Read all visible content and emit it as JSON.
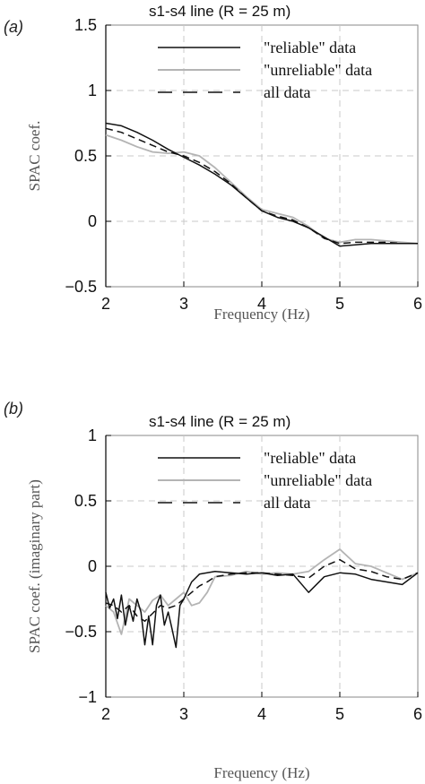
{
  "chart_data": [
    {
      "type": "line",
      "panel_label": "(a)",
      "title": "s1-s4 line (R = 25 m)",
      "xlabel": "Frequency (Hz)",
      "ylabel": "SPAC coef.",
      "xlim": [
        2,
        6
      ],
      "ylim": [
        -0.5,
        1.5
      ],
      "xticks": [
        "2",
        "3",
        "4",
        "5",
        "6"
      ],
      "yticks": [
        "1.5",
        "1",
        "0.5",
        "0",
        "−0.5"
      ],
      "ytick_values": [
        1.5,
        1,
        0.5,
        0,
        -0.5
      ],
      "grid": true,
      "legend_position": "top-right",
      "series": [
        {
          "name": "\"reliable\" data",
          "color": "#111111",
          "dash": "solid",
          "x": [
            2.0,
            2.2,
            2.4,
            2.6,
            2.8,
            3.0,
            3.2,
            3.4,
            3.6,
            3.8,
            4.0,
            4.2,
            4.4,
            4.6,
            4.8,
            5.0,
            5.2,
            5.4,
            5.6,
            5.8,
            6.0
          ],
          "y": [
            0.75,
            0.73,
            0.68,
            0.62,
            0.55,
            0.49,
            0.43,
            0.36,
            0.28,
            0.18,
            0.08,
            0.03,
            0.0,
            -0.05,
            -0.12,
            -0.19,
            -0.18,
            -0.17,
            -0.17,
            -0.17,
            -0.17
          ]
        },
        {
          "name": "\"unreliable\" data",
          "color": "#b4b4b4",
          "dash": "solid",
          "x": [
            2.0,
            2.2,
            2.4,
            2.6,
            2.8,
            3.0,
            3.2,
            3.4,
            3.6,
            3.8,
            4.0,
            4.2,
            4.4,
            4.6,
            4.8,
            5.0,
            5.2,
            5.4,
            5.6,
            5.8,
            6.0
          ],
          "y": [
            0.66,
            0.62,
            0.57,
            0.53,
            0.52,
            0.53,
            0.5,
            0.41,
            0.3,
            0.19,
            0.09,
            0.06,
            0.03,
            -0.04,
            -0.13,
            -0.16,
            -0.14,
            -0.14,
            -0.15,
            -0.16,
            -0.17
          ]
        },
        {
          "name": "all data",
          "color": "#111111",
          "dash": "dashed",
          "x": [
            2.0,
            2.2,
            2.4,
            2.6,
            2.8,
            3.0,
            3.2,
            3.4,
            3.6,
            3.8,
            4.0,
            4.2,
            4.4,
            4.6,
            4.8,
            5.0,
            5.2,
            5.4,
            5.6,
            5.8,
            6.0
          ],
          "y": [
            0.71,
            0.68,
            0.63,
            0.58,
            0.53,
            0.5,
            0.45,
            0.38,
            0.29,
            0.18,
            0.08,
            0.04,
            0.01,
            -0.05,
            -0.13,
            -0.17,
            -0.16,
            -0.16,
            -0.16,
            -0.17,
            -0.17
          ]
        }
      ]
    },
    {
      "type": "line",
      "panel_label": "(b)",
      "title": "s1-s4 line (R = 25 m)",
      "xlabel": "Frequency (Hz)",
      "ylabel": "SPAC coef. (imaginary part)",
      "xlim": [
        2,
        6
      ],
      "ylim": [
        -1,
        1
      ],
      "xticks": [
        "2",
        "3",
        "4",
        "5",
        "6"
      ],
      "yticks": [
        "1",
        "0.5",
        "0",
        "−0.5",
        "−1"
      ],
      "ytick_values": [
        1,
        0.5,
        0,
        -0.5,
        -1
      ],
      "grid": true,
      "legend_position": "top-right",
      "series": [
        {
          "name": "\"reliable\" data",
          "color": "#111111",
          "dash": "solid",
          "x": [
            2.0,
            2.05,
            2.1,
            2.15,
            2.2,
            2.25,
            2.3,
            2.35,
            2.4,
            2.45,
            2.5,
            2.55,
            2.6,
            2.65,
            2.7,
            2.75,
            2.8,
            2.85,
            2.9,
            2.95,
            3.0,
            3.1,
            3.2,
            3.4,
            3.6,
            3.8,
            4.0,
            4.2,
            4.4,
            4.6,
            4.8,
            5.0,
            5.2,
            5.4,
            5.6,
            5.8,
            6.0
          ],
          "y": [
            -0.2,
            -0.32,
            -0.25,
            -0.4,
            -0.22,
            -0.45,
            -0.3,
            -0.42,
            -0.25,
            -0.35,
            -0.6,
            -0.38,
            -0.6,
            -0.3,
            -0.22,
            -0.45,
            -0.35,
            -0.48,
            -0.62,
            -0.3,
            -0.25,
            -0.12,
            -0.06,
            -0.04,
            -0.05,
            -0.06,
            -0.05,
            -0.07,
            -0.06,
            -0.2,
            -0.08,
            -0.05,
            -0.06,
            -0.1,
            -0.12,
            -0.14,
            -0.05
          ]
        },
        {
          "name": "\"unreliable\" data",
          "color": "#b4b4b4",
          "dash": "solid",
          "x": [
            2.0,
            2.1,
            2.2,
            2.3,
            2.4,
            2.5,
            2.6,
            2.7,
            2.8,
            2.9,
            3.0,
            3.1,
            3.2,
            3.3,
            3.4,
            3.6,
            3.8,
            4.0,
            4.2,
            4.4,
            4.6,
            4.8,
            5.0,
            5.2,
            5.4,
            5.6,
            5.8,
            6.0
          ],
          "y": [
            -0.3,
            -0.35,
            -0.52,
            -0.25,
            -0.3,
            -0.35,
            -0.26,
            -0.22,
            -0.3,
            -0.25,
            -0.2,
            -0.3,
            -0.28,
            -0.2,
            -0.08,
            -0.07,
            -0.04,
            -0.06,
            -0.05,
            -0.06,
            -0.04,
            0.05,
            0.13,
            0.02,
            0.0,
            -0.05,
            -0.1,
            -0.05
          ]
        },
        {
          "name": "all data",
          "color": "#111111",
          "dash": "dashed",
          "x": [
            2.0,
            2.1,
            2.2,
            2.3,
            2.4,
            2.5,
            2.6,
            2.7,
            2.8,
            2.9,
            3.0,
            3.1,
            3.2,
            3.3,
            3.4,
            3.6,
            3.8,
            4.0,
            4.2,
            4.4,
            4.6,
            4.8,
            5.0,
            5.2,
            5.4,
            5.6,
            5.8,
            6.0
          ],
          "y": [
            -0.28,
            -0.3,
            -0.35,
            -0.3,
            -0.38,
            -0.42,
            -0.36,
            -0.3,
            -0.32,
            -0.3,
            -0.25,
            -0.2,
            -0.15,
            -0.12,
            -0.08,
            -0.06,
            -0.05,
            -0.05,
            -0.06,
            -0.07,
            -0.09,
            0.0,
            0.05,
            -0.02,
            -0.04,
            -0.08,
            -0.1,
            -0.05
          ]
        }
      ]
    }
  ]
}
